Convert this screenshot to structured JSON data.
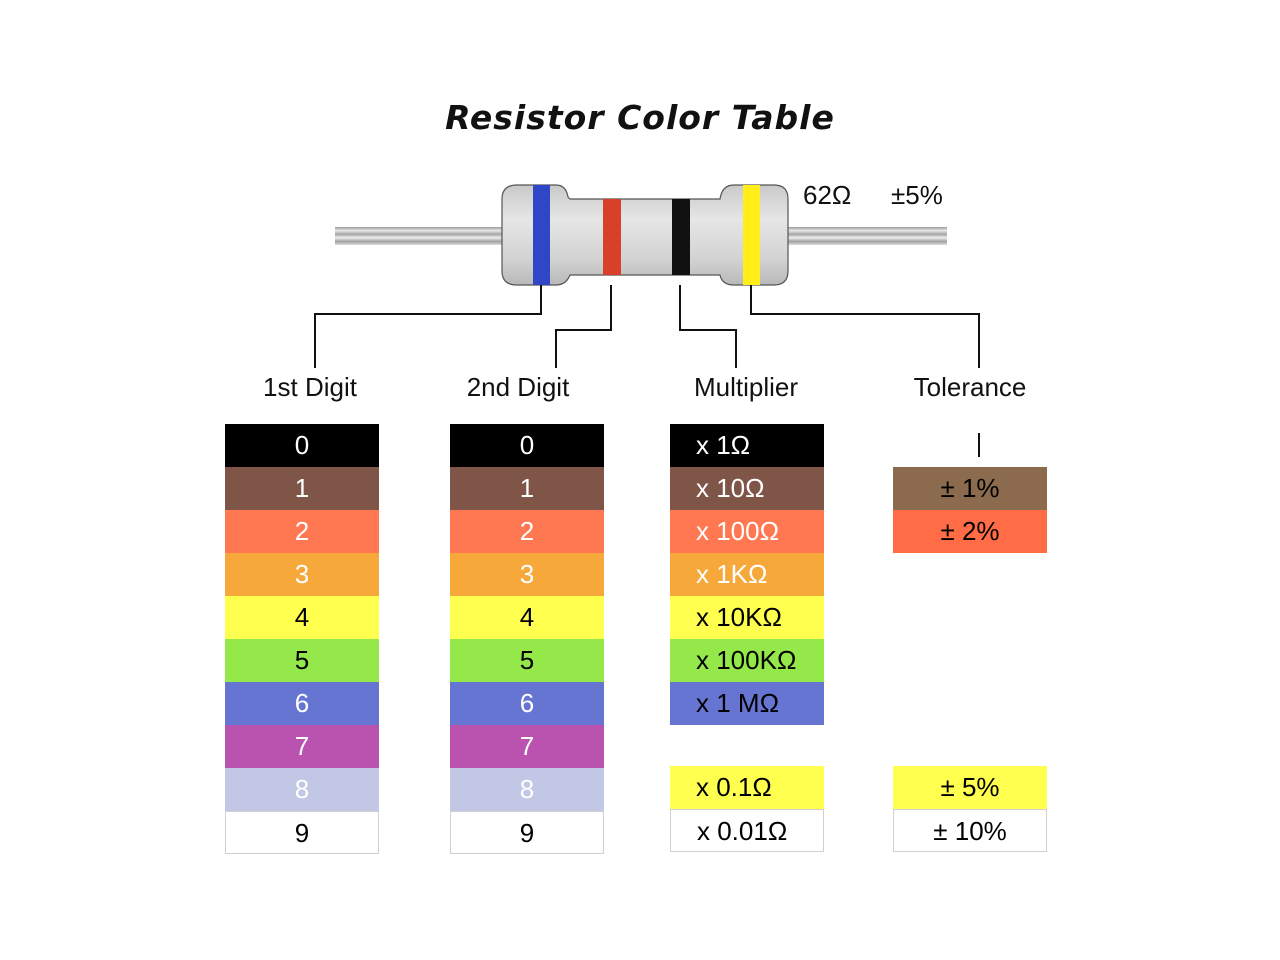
{
  "title": "Resistor Color Table",
  "example_resistor": {
    "value_label": "62Ω",
    "tolerance_label": "±5%",
    "bands": [
      {
        "role": "1st Digit",
        "color_name": "blue",
        "color": "#2f47c6"
      },
      {
        "role": "2nd Digit",
        "color_name": "red",
        "color": "#d9402a"
      },
      {
        "role": "Multiplier",
        "color_name": "black",
        "color": "#111111"
      },
      {
        "role": "Tolerance",
        "color_name": "yellow",
        "color": "#ffee1a"
      }
    ],
    "body_color": "#d8d8d8",
    "lead_color": "#b8b8b8"
  },
  "headers": {
    "first_digit": "1st Digit",
    "second_digit": "2nd Digit",
    "multiplier": "Multiplier",
    "tolerance": "Tolerance"
  },
  "first_digit": [
    {
      "label": "0",
      "bg": "#000000",
      "fg": "#ffffff"
    },
    {
      "label": "1",
      "bg": "#7e5546",
      "fg": "#ffffff"
    },
    {
      "label": "2",
      "bg": "#ff7851",
      "fg": "#ffffff"
    },
    {
      "label": "3",
      "bg": "#f7a83a",
      "fg": "#ffffff"
    },
    {
      "label": "4",
      "bg": "#ffff4f",
      "fg": "#000000"
    },
    {
      "label": "5",
      "bg": "#95e84a",
      "fg": "#000000"
    },
    {
      "label": "6",
      "bg": "#6675d1",
      "fg": "#ffffff"
    },
    {
      "label": "7",
      "bg": "#ba52b0",
      "fg": "#ffffff"
    },
    {
      "label": "8",
      "bg": "#c3c7e6",
      "fg": "#ffffff"
    },
    {
      "label": "9",
      "bg": "#ffffff",
      "fg": "#000000"
    }
  ],
  "second_digit": [
    {
      "label": "0",
      "bg": "#000000",
      "fg": "#ffffff"
    },
    {
      "label": "1",
      "bg": "#7e5546",
      "fg": "#ffffff"
    },
    {
      "label": "2",
      "bg": "#ff7851",
      "fg": "#ffffff"
    },
    {
      "label": "3",
      "bg": "#f7a83a",
      "fg": "#ffffff"
    },
    {
      "label": "4",
      "bg": "#ffff4f",
      "fg": "#000000"
    },
    {
      "label": "5",
      "bg": "#95e84a",
      "fg": "#000000"
    },
    {
      "label": "6",
      "bg": "#6675d1",
      "fg": "#ffffff"
    },
    {
      "label": "7",
      "bg": "#ba52b0",
      "fg": "#ffffff"
    },
    {
      "label": "8",
      "bg": "#c3c7e6",
      "fg": "#ffffff"
    },
    {
      "label": "9",
      "bg": "#ffffff",
      "fg": "#000000"
    }
  ],
  "multiplier": [
    {
      "label": "x 1Ω",
      "bg": "#000000",
      "fg": "#ffffff"
    },
    {
      "label": "x 10Ω",
      "bg": "#7e5546",
      "fg": "#ffffff"
    },
    {
      "label": "x 100Ω",
      "bg": "#ff7851",
      "fg": "#ffffff"
    },
    {
      "label": "x 1KΩ",
      "bg": "#f7a83a",
      "fg": "#ffffff"
    },
    {
      "label": "x 10KΩ",
      "bg": "#ffff4f",
      "fg": "#000000"
    },
    {
      "label": "x 100KΩ",
      "bg": "#95e84a",
      "fg": "#000000"
    },
    {
      "label": "x 1 MΩ",
      "bg": "#6675d1",
      "fg": "#000000"
    }
  ],
  "multiplier_extra": [
    {
      "label": "x 0.1Ω",
      "bg": "#ffff4f",
      "fg": "#000000"
    },
    {
      "label": "x 0.01Ω",
      "bg": "#ffffff",
      "fg": "#000000"
    }
  ],
  "tolerance": [
    {
      "label": "± 1%",
      "bg": "#8b6a4e",
      "fg": "#000000"
    },
    {
      "label": "± 2%",
      "bg": "#ff6c45",
      "fg": "#000000"
    }
  ],
  "tolerance_extra": [
    {
      "label": "± 5%",
      "bg": "#ffff4f",
      "fg": "#000000"
    },
    {
      "label": "± 10%",
      "bg": "#ffffff",
      "fg": "#000000"
    }
  ]
}
